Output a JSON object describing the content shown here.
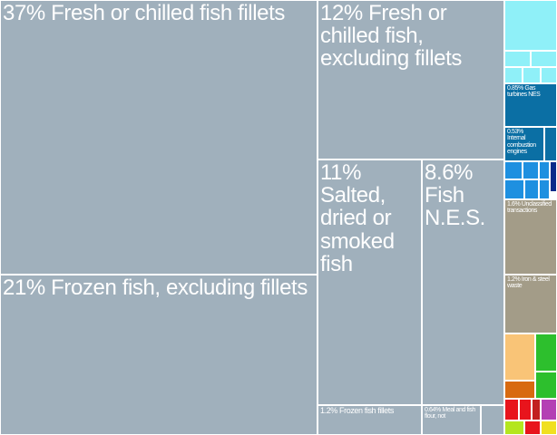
{
  "chart_data": {
    "type": "treemap",
    "categories": [
      "Fresh or chilled fish fillets",
      "Frozen fish, excluding fillets",
      "Fresh or chilled fish, excluding fillets",
      "Salted, dried or smoked fish",
      "Fish N.E.S.",
      "Frozen fish fillets",
      "Meal and fish flour, not",
      "Gas turbines NES",
      "Internal combustion engines",
      "Unclassified transactions",
      "Iron & steel waste"
    ],
    "values": [
      37,
      21,
      12,
      11,
      8.6,
      1.2,
      0.64,
      0.85,
      0.53,
      1.6,
      1.2
    ],
    "value_labels": [
      "37%",
      "21%",
      "12%",
      "11%",
      "8.6%",
      "1.2%",
      "0.64%",
      "0.85%",
      "0.53%",
      "1.6%",
      "1.2%"
    ],
    "colors": [
      "#a0b0bc",
      "#a0b0bc",
      "#a0b0bc",
      "#a0b0bc",
      "#a0b0bc",
      "#a0b0bc",
      "#a0b0bc",
      "#0b6fa4",
      "#0b6fa4",
      "#a39c88",
      "#a39c88"
    ]
  }
}
